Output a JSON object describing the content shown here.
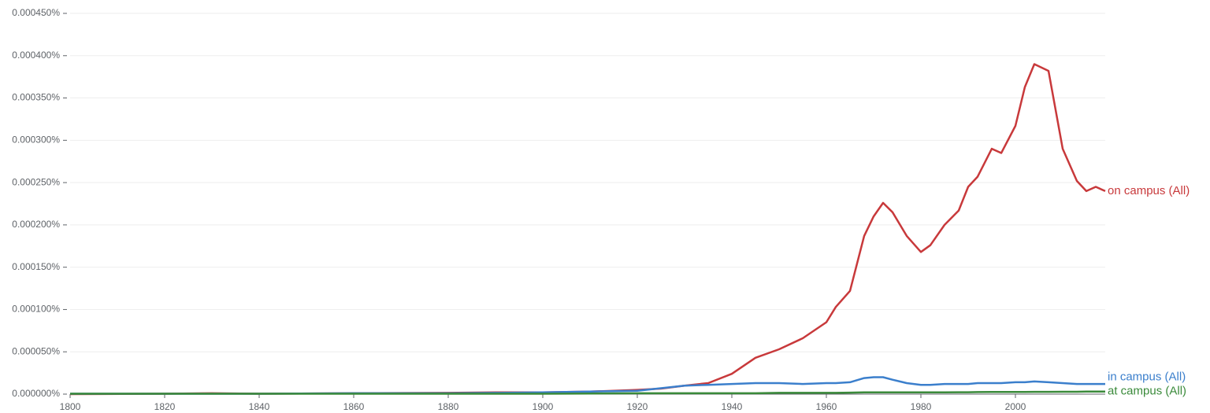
{
  "chart_data": {
    "type": "line",
    "x": [
      1800,
      1820,
      1830,
      1840,
      1860,
      1880,
      1890,
      1900,
      1910,
      1920,
      1925,
      1930,
      1935,
      1940,
      1945,
      1950,
      1955,
      1960,
      1962,
      1965,
      1968,
      1970,
      1972,
      1974,
      1977,
      1980,
      1982,
      1985,
      1988,
      1990,
      1992,
      1995,
      1997,
      2000,
      2002,
      2004,
      2007,
      2010,
      2013,
      2015,
      2017,
      2019
    ],
    "series": [
      {
        "name": "on campus (All)",
        "color": "#c8393b",
        "values": [
          0,
          5e-07,
          1e-06,
          5e-07,
          1e-06,
          1.5e-06,
          2e-06,
          2e-06,
          3e-06,
          5e-06,
          6.5e-06,
          1e-05,
          1.3e-05,
          2.4e-05,
          4.3e-05,
          5.3e-05,
          6.6e-05,
          8.5e-05,
          0.000103,
          0.000122,
          0.000187,
          0.00021,
          0.000226,
          0.000215,
          0.000187,
          0.000168,
          0.000176,
          0.0002,
          0.000217,
          0.000245,
          0.000257,
          0.00029,
          0.000285,
          0.000317,
          0.000363,
          0.00039,
          0.000382,
          0.00029,
          0.000252,
          0.00024,
          0.000245,
          0.00024
        ]
      },
      {
        "name": "in campus (All)",
        "color": "#3b7fcc",
        "values": [
          5e-07,
          5e-07,
          5e-07,
          5e-07,
          1e-06,
          1e-06,
          1.5e-06,
          2e-06,
          3e-06,
          4e-06,
          7e-06,
          1e-05,
          1.1e-05,
          1.2e-05,
          1.3e-05,
          1.3e-05,
          1.2e-05,
          1.3e-05,
          1.3e-05,
          1.4e-05,
          1.9e-05,
          2e-05,
          2e-05,
          1.7e-05,
          1.3e-05,
          1.1e-05,
          1.1e-05,
          1.2e-05,
          1.2e-05,
          1.2e-05,
          1.3e-05,
          1.3e-05,
          1.3e-05,
          1.4e-05,
          1.4e-05,
          1.5e-05,
          1.4e-05,
          1.3e-05,
          1.2e-05,
          1.2e-05,
          1.2e-05,
          1.2e-05
        ]
      },
      {
        "name": "at campus (All)",
        "color": "#3a8a3a",
        "values": [
          5e-07,
          5e-07,
          5e-07,
          5e-07,
          5e-07,
          5e-07,
          5e-07,
          5e-07,
          7e-07,
          1e-06,
          1e-06,
          1e-06,
          1e-06,
          1e-06,
          1e-06,
          1.5e-06,
          1.5e-06,
          1.5e-06,
          1.5e-06,
          1.8e-06,
          2e-06,
          2e-06,
          2e-06,
          2e-06,
          2e-06,
          2e-06,
          2e-06,
          2e-06,
          2.2e-06,
          2.2e-06,
          2.4e-06,
          2.5e-06,
          2.5e-06,
          2.5e-06,
          2.6e-06,
          2.7e-06,
          2.7e-06,
          2.8e-06,
          2.8e-06,
          3e-06,
          3e-06,
          3e-06
        ]
      }
    ],
    "xlim": [
      1800,
      2019
    ],
    "xticks": [
      1800,
      1820,
      1840,
      1860,
      1880,
      1900,
      1920,
      1940,
      1960,
      1980,
      2000
    ],
    "ylim": [
      0,
      0.00045
    ],
    "yticks": [
      {
        "value": 0,
        "label": "0.000000%"
      },
      {
        "value": 5e-05,
        "label": "0.000050%"
      },
      {
        "value": 0.0001,
        "label": "0.000100%"
      },
      {
        "value": 0.00015,
        "label": "0.000150%"
      },
      {
        "value": 0.0002,
        "label": "0.000200%"
      },
      {
        "value": 0.00025,
        "label": "0.000250%"
      },
      {
        "value": 0.0003,
        "label": "0.000300%"
      },
      {
        "value": 0.00035,
        "label": "0.000350%"
      },
      {
        "value": 0.0004,
        "label": "0.000400%"
      },
      {
        "value": 0.00045,
        "label": "0.000450%"
      }
    ],
    "grid": true
  }
}
